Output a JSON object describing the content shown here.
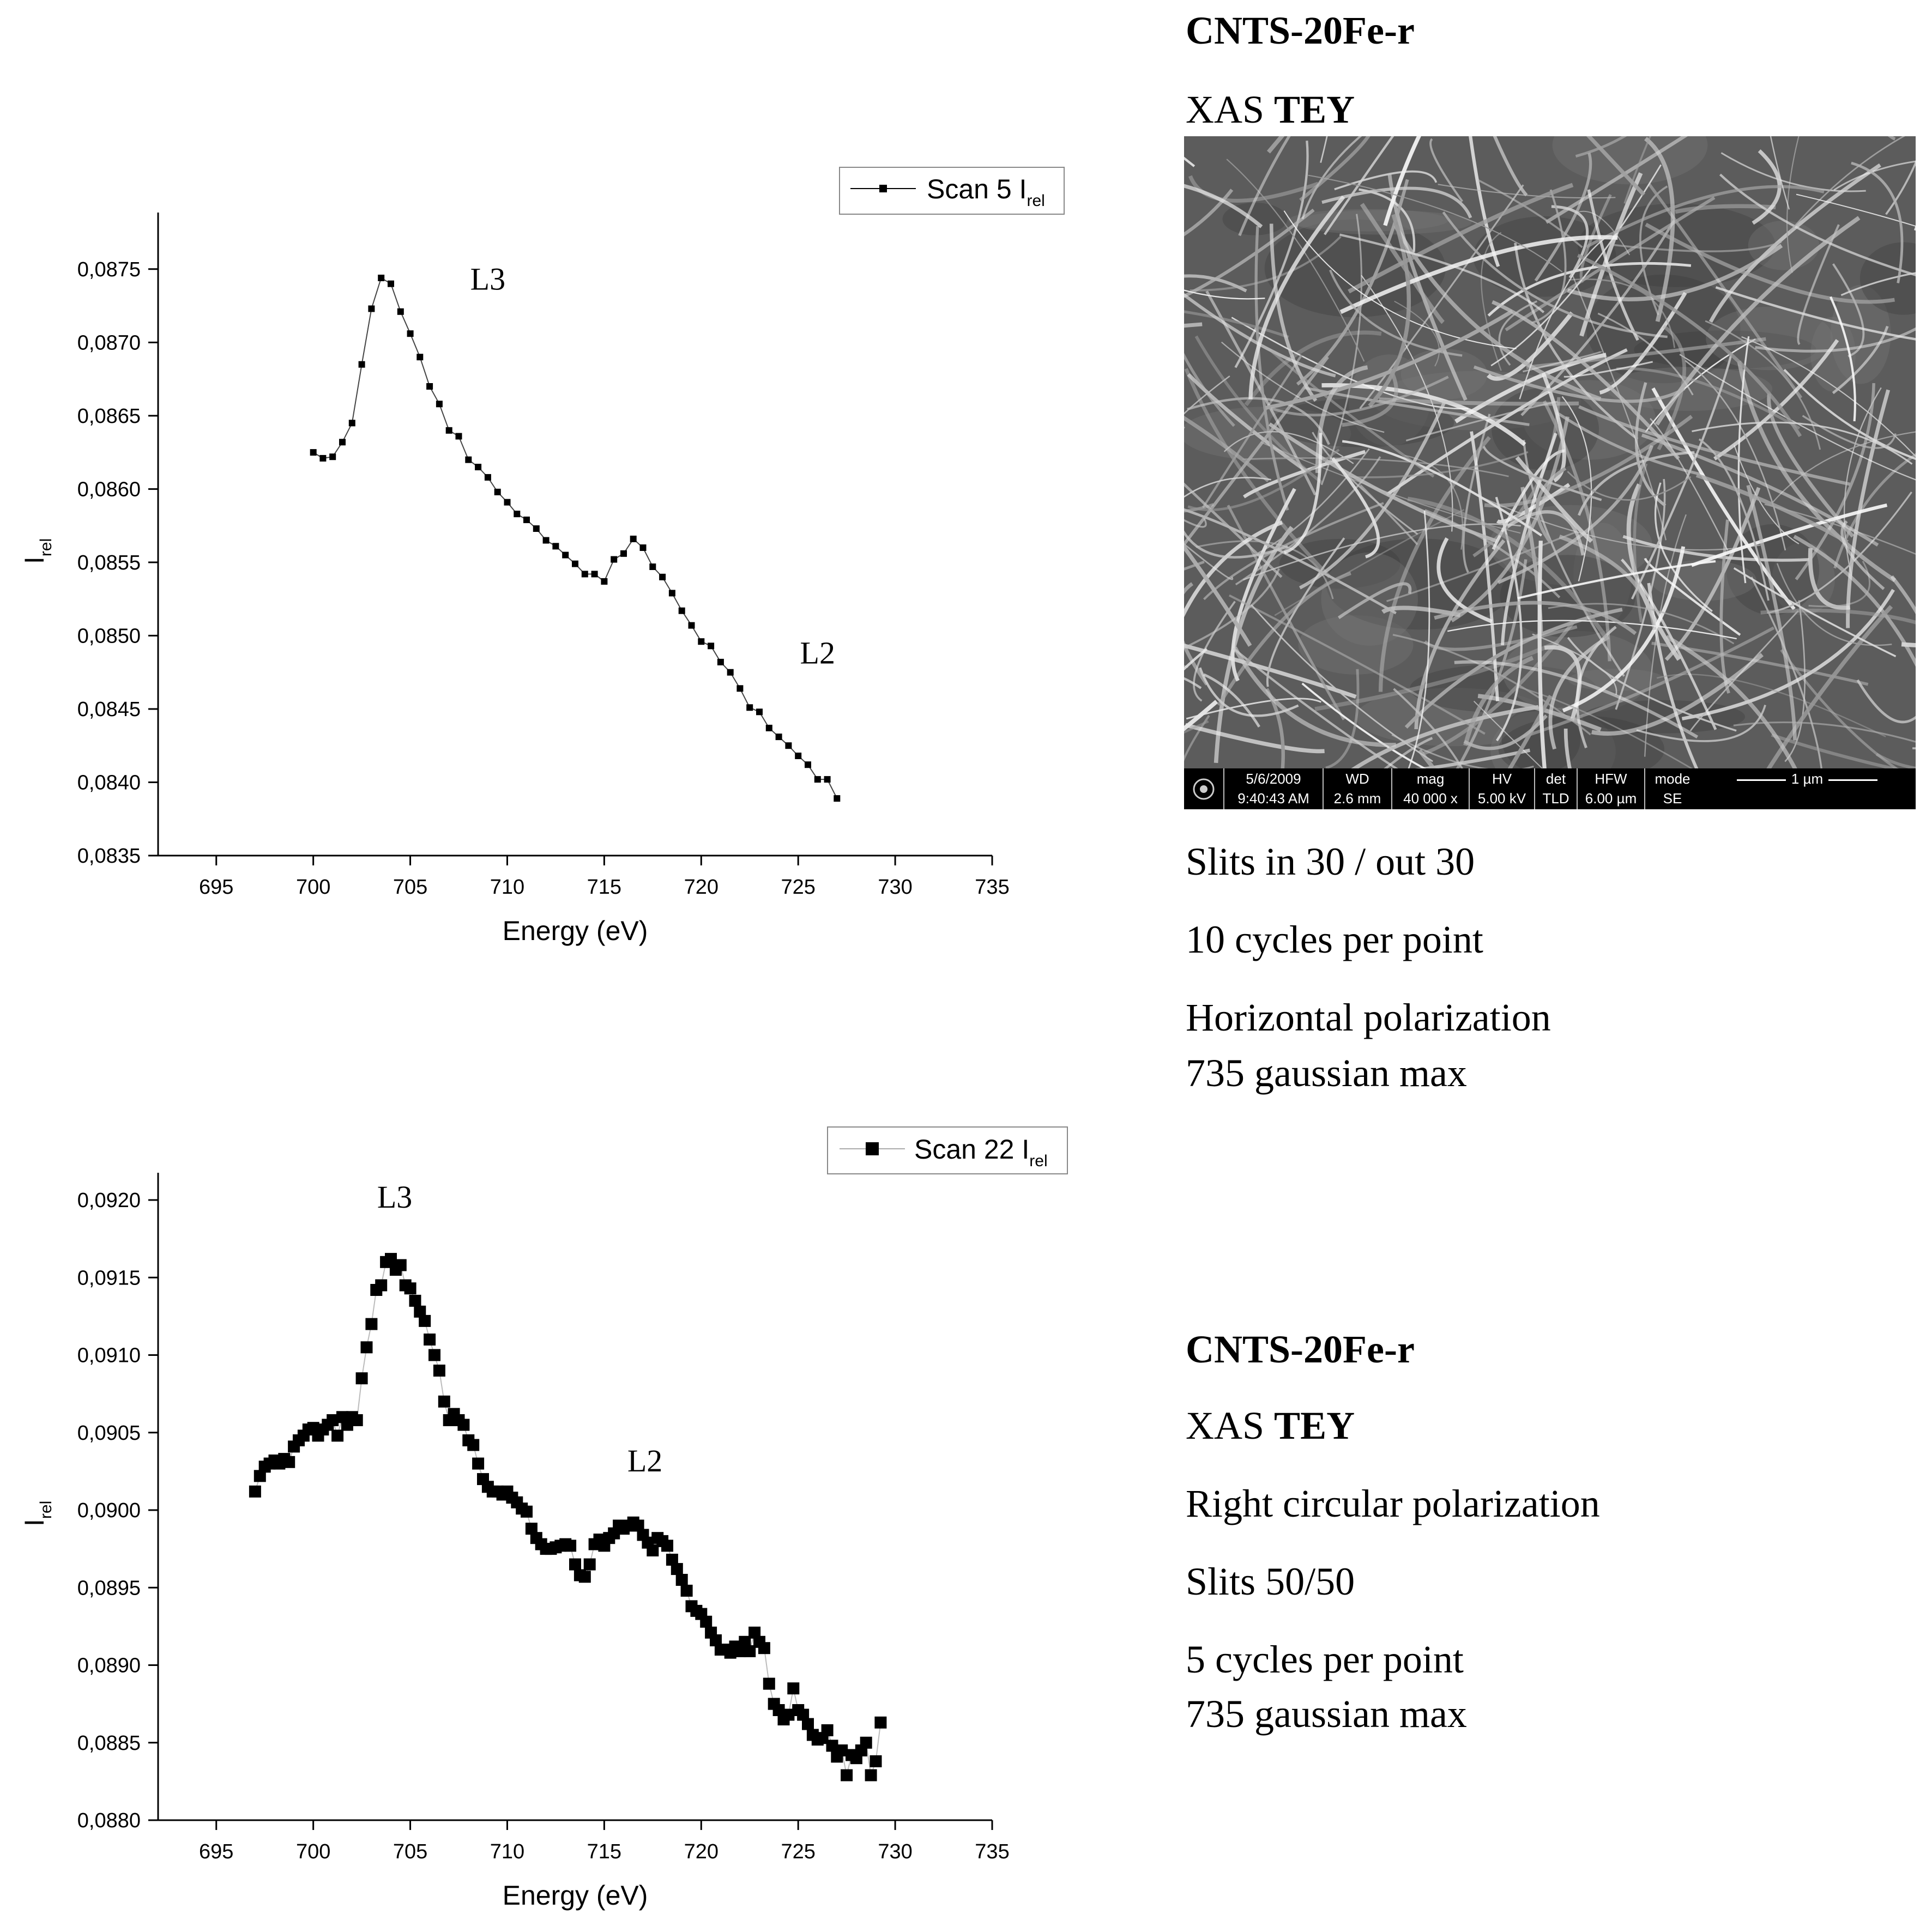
{
  "panel_1": {
    "title": "CNTS-20Fe-r",
    "technique_prefix": "XAS ",
    "technique_mode": "TEY",
    "settings": [
      "Slits in 30 / out 30",
      "10 cycles per point",
      "Horizontal polarization",
      "735 gaussian max"
    ]
  },
  "panel_2": {
    "title": "CNTS-20Fe-r",
    "technique_prefix": "XAS ",
    "technique_mode": "TEY",
    "settings": [
      "Right circular polarization",
      "Slits 50/50",
      "5 cycles per point",
      "735 gaussian max"
    ]
  },
  "sem_image": {
    "description_icon": "sem-micrograph",
    "databar": {
      "date_header": "5/6/2009",
      "date_value": "9:40:43 AM",
      "wd_header": "WD",
      "wd_value": "2.6 mm",
      "mag_header": "mag",
      "mag_value": "40 000 x",
      "hv_header": "HV",
      "hv_value": "5.00 kV",
      "det_header": "det",
      "det_value": "TLD",
      "hfw_header": "HFW",
      "hfw_value": "6.00 µm",
      "mode_header": "mode",
      "mode_value": "SE",
      "scale_label": "1 µm"
    }
  },
  "chart_data": [
    {
      "type": "line",
      "title": "",
      "xlabel": "Energy (eV)",
      "ylabel": "I",
      "ylabel_sub": "rel",
      "xlim": [
        692,
        735
      ],
      "ylim": [
        0.0835,
        0.0877
      ],
      "xticks": [
        695,
        700,
        705,
        710,
        715,
        720,
        725,
        730,
        735
      ],
      "yticks": [
        0.0835,
        0.084,
        0.0845,
        0.085,
        0.0855,
        0.086,
        0.0865,
        0.087,
        0.0875
      ],
      "ytick_labels": [
        "0,0835",
        "0,0840",
        "0,0845",
        "0,0850",
        "0,0855",
        "0,0860",
        "0,0865",
        "0,0870",
        "0,0875"
      ],
      "legend": "top-right",
      "series": [
        {
          "name": "Scan 5 I",
          "name_sub": "rel",
          "marker": "small-square",
          "x": [
            700,
            700.5,
            701,
            701.5,
            702,
            702.5,
            703,
            703.5,
            704,
            704.5,
            705,
            705.5,
            706,
            706.5,
            707,
            707.5,
            708,
            708.5,
            709,
            709.5,
            710,
            710.5,
            711,
            711.5,
            712,
            712.5,
            713,
            713.5,
            714,
            714.5,
            715,
            715.5,
            716,
            716.5,
            717,
            717.5,
            718,
            718.5,
            719,
            719.5,
            720,
            720.5,
            721,
            721.5,
            722,
            722.5,
            723,
            723.5,
            724,
            724.5,
            725,
            725.5,
            726,
            726.5,
            727
          ],
          "y": [
            0.08625,
            0.08621,
            0.08622,
            0.08632,
            0.08645,
            0.08685,
            0.08723,
            0.08744,
            0.0874,
            0.08721,
            0.08706,
            0.0869,
            0.0867,
            0.08658,
            0.0864,
            0.08636,
            0.0862,
            0.08615,
            0.08608,
            0.08598,
            0.08591,
            0.08583,
            0.08579,
            0.08573,
            0.08565,
            0.08561,
            0.08555,
            0.08549,
            0.08542,
            0.08542,
            0.08537,
            0.08552,
            0.08556,
            0.08566,
            0.0856,
            0.08547,
            0.0854,
            0.08529,
            0.08517,
            0.08507,
            0.08496,
            0.08493,
            0.08482,
            0.08475,
            0.08464,
            0.08451,
            0.08448,
            0.08437,
            0.08431,
            0.08425,
            0.08418,
            0.08412,
            0.08402,
            0.08402,
            0.08389
          ]
        }
      ],
      "annotations": [
        {
          "text": "L3",
          "x": 709,
          "y": 0.08736
        },
        {
          "text": "L2",
          "x": 726,
          "y": 0.08481
        }
      ]
    },
    {
      "type": "scatter",
      "title": "",
      "xlabel": "Energy (eV)",
      "ylabel": "I",
      "ylabel_sub": "rel",
      "xlim": [
        692,
        735
      ],
      "ylim": [
        0.088,
        0.092
      ],
      "xticks": [
        695,
        700,
        705,
        710,
        715,
        720,
        725,
        730,
        735
      ],
      "yticks": [
        0.088,
        0.0885,
        0.089,
        0.0895,
        0.09,
        0.0905,
        0.091,
        0.0915,
        0.092
      ],
      "ytick_labels": [
        "0,0880",
        "0,0885",
        "0,0890",
        "0,0895",
        "0,0900",
        "0,0905",
        "0,0910",
        "0,0915",
        "0,0920"
      ],
      "legend": "top-right",
      "series": [
        {
          "name": "Scan 22 I",
          "name_sub": "rel",
          "marker": "large-square",
          "x": [
            697,
            697.25,
            697.5,
            697.75,
            698,
            698.25,
            698.5,
            698.75,
            699,
            699.25,
            699.5,
            699.75,
            700,
            700.25,
            700.5,
            700.75,
            701,
            701.25,
            701.5,
            701.75,
            702,
            702.25,
            702.5,
            702.75,
            703,
            703.25,
            703.5,
            703.75,
            704,
            704.25,
            704.5,
            704.75,
            705,
            705.25,
            705.5,
            705.75,
            706,
            706.25,
            706.5,
            706.75,
            707,
            707.25,
            707.5,
            707.75,
            708,
            708.25,
            708.5,
            708.75,
            709,
            709.25,
            709.5,
            709.75,
            710,
            710.25,
            710.5,
            710.75,
            711,
            711.25,
            711.5,
            711.75,
            712,
            712.25,
            712.5,
            712.75,
            713,
            713.25,
            713.5,
            713.75,
            714,
            714.25,
            714.5,
            714.75,
            715,
            715.25,
            715.5,
            715.75,
            716,
            716.25,
            716.5,
            716.75,
            717,
            717.25,
            717.5,
            717.75,
            718,
            718.25,
            718.5,
            718.75,
            719,
            719.25,
            719.5,
            719.75,
            720,
            720.25,
            720.5,
            720.75,
            721,
            721.25,
            721.5,
            721.75,
            722,
            722.25,
            722.5,
            722.75,
            723,
            723.25,
            723.5,
            723.75,
            724,
            724.25,
            724.5,
            724.75,
            725,
            725.25,
            725.5,
            725.75,
            726,
            726.25,
            726.5,
            726.75,
            727,
            727.25,
            727.5,
            727.75,
            728,
            728.25,
            728.5,
            728.75,
            729,
            729.25
          ],
          "y": [
            0.09012,
            0.09022,
            0.09028,
            0.0903,
            0.09032,
            0.0903,
            0.09033,
            0.09031,
            0.09041,
            0.09045,
            0.09048,
            0.09052,
            0.09053,
            0.09048,
            0.09052,
            0.09055,
            0.09058,
            0.09048,
            0.0906,
            0.09055,
            0.0906,
            0.09058,
            0.09085,
            0.09105,
            0.0912,
            0.09142,
            0.09145,
            0.0916,
            0.09162,
            0.09155,
            0.09158,
            0.09145,
            0.09143,
            0.09135,
            0.09128,
            0.09122,
            0.0911,
            0.091,
            0.0909,
            0.0907,
            0.09058,
            0.09062,
            0.09058,
            0.09055,
            0.09045,
            0.09042,
            0.0903,
            0.0902,
            0.09015,
            0.09012,
            0.09012,
            0.0901,
            0.09012,
            0.09008,
            0.09005,
            0.09001,
            0.08999,
            0.08988,
            0.08982,
            0.08978,
            0.08975,
            0.08975,
            0.08976,
            0.08977,
            0.08978,
            0.08977,
            0.08965,
            0.08958,
            0.08957,
            0.08965,
            0.08978,
            0.08981,
            0.08977,
            0.08982,
            0.08985,
            0.0899,
            0.08988,
            0.0899,
            0.08992,
            0.0899,
            0.08984,
            0.08979,
            0.08974,
            0.08982,
            0.0898,
            0.08977,
            0.08968,
            0.08962,
            0.08955,
            0.08948,
            0.08938,
            0.08935,
            0.08933,
            0.08928,
            0.08921,
            0.08916,
            0.0891,
            0.0891,
            0.08908,
            0.08912,
            0.08909,
            0.08915,
            0.08909,
            0.08921,
            0.08915,
            0.08911,
            0.08888,
            0.08875,
            0.08871,
            0.08865,
            0.08868,
            0.08885,
            0.08871,
            0.08868,
            0.08862,
            0.08855,
            0.08852,
            0.08853,
            0.08858,
            0.08848,
            0.08841,
            0.08845,
            0.08829,
            0.08842,
            0.0884,
            0.08845,
            0.0885,
            0.08829,
            0.08838,
            0.08863
          ]
        }
      ],
      "annotations": [
        {
          "text": "L3",
          "x": 704.2,
          "y": 0.09195
        },
        {
          "text": "L2",
          "x": 717.1,
          "y": 0.09025
        }
      ]
    }
  ]
}
